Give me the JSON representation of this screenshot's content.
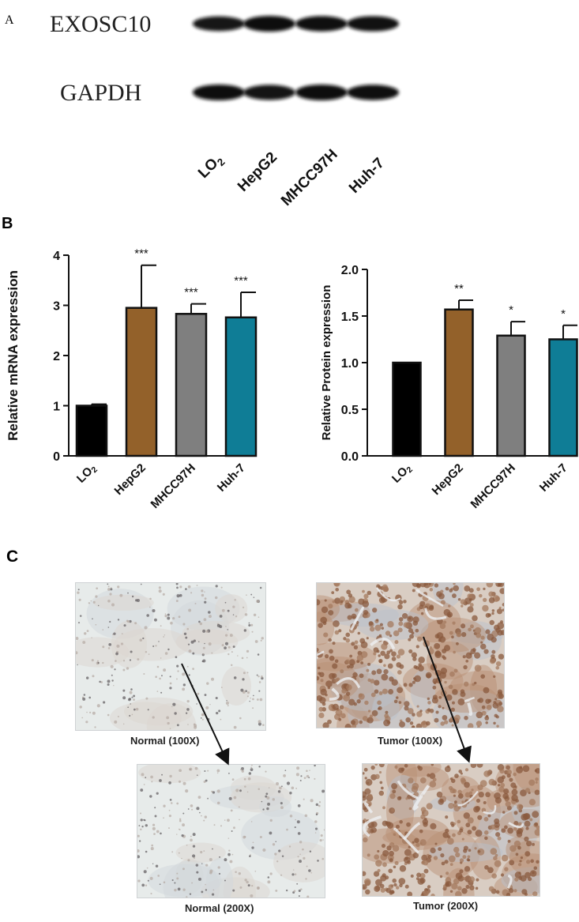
{
  "panel_a": {
    "label": "A",
    "rows": [
      {
        "name": "EXOSC10",
        "band_intensity": [
          0.85,
          1.0,
          0.95,
          0.92
        ]
      },
      {
        "name": "GAPDH",
        "band_intensity": [
          1.0,
          0.9,
          1.0,
          0.95
        ]
      }
    ],
    "lanes": [
      {
        "base": "LO",
        "sub": "2"
      },
      {
        "base": "HepG2",
        "sub": ""
      },
      {
        "base": "MHCC97H",
        "sub": ""
      },
      {
        "base": "Huh-7",
        "sub": ""
      }
    ]
  },
  "panel_b": {
    "label": "B"
  },
  "panel_c": {
    "label": "C",
    "images": [
      {
        "caption": "Normal (100X)",
        "tone": "normal"
      },
      {
        "caption": "Tumor (100X)",
        "tone": "tumor"
      },
      {
        "caption": "Normal (200X)",
        "tone": "normal"
      },
      {
        "caption": "Tumor (200X)",
        "tone": "tumor"
      }
    ]
  },
  "chart_data": [
    {
      "type": "bar",
      "categories": [
        {
          "base": "LO",
          "sub": "2"
        },
        {
          "base": "HepG2",
          "sub": ""
        },
        {
          "base": "MHCC97H",
          "sub": ""
        },
        {
          "base": "Huh-7",
          "sub": ""
        }
      ],
      "values": [
        1.0,
        2.95,
        2.83,
        2.76
      ],
      "errors": [
        0.03,
        0.85,
        0.2,
        0.5
      ],
      "significance": [
        "",
        "***",
        "***",
        "***"
      ],
      "colors": [
        "#000000",
        "#93612a",
        "#7f7f7f",
        "#0f7d96"
      ],
      "ylabel": "Relative mRNA expression",
      "ylim": [
        0,
        4
      ],
      "yticks": [
        "0",
        "1",
        "2",
        "3",
        "4"
      ],
      "ytick_values": [
        0,
        1,
        2,
        3,
        4
      ]
    },
    {
      "type": "bar",
      "categories": [
        {
          "base": "LO",
          "sub": "2"
        },
        {
          "base": "HepG2",
          "sub": ""
        },
        {
          "base": "MHCC97H",
          "sub": ""
        },
        {
          "base": "Huh-7",
          "sub": ""
        }
      ],
      "values": [
        1.0,
        1.57,
        1.29,
        1.25
      ],
      "errors": [
        0.0,
        0.1,
        0.15,
        0.15
      ],
      "significance": [
        "",
        "**",
        "*",
        "*"
      ],
      "colors": [
        "#000000",
        "#93612a",
        "#7f7f7f",
        "#0f7d96"
      ],
      "ylabel": "Relative Protein expression",
      "ylim": [
        0,
        2.0
      ],
      "yticks": [
        "0.0",
        "0.5",
        "1.0",
        "1.5",
        "2.0"
      ],
      "ytick_values": [
        0,
        0.5,
        1.0,
        1.5,
        2.0
      ]
    }
  ]
}
